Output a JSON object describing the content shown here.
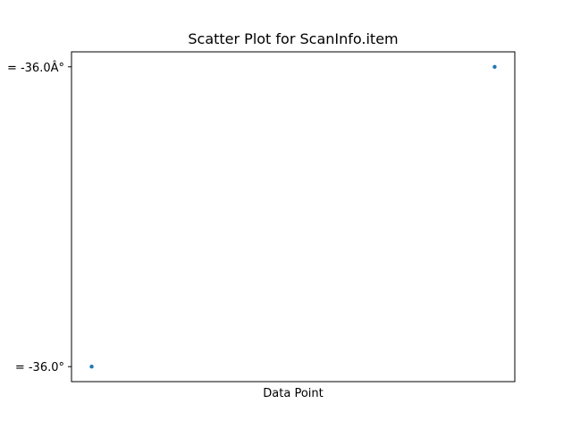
{
  "chart_data": {
    "type": "scatter",
    "title": "Scatter Plot for ScanInfo.item",
    "xlabel": "Data Point",
    "ylabel": "",
    "categories": [
      "= -36.0°",
      "= -36.0Â°"
    ],
    "x": [
      0,
      1
    ],
    "y": [
      "= -36.0°",
      "= -36.0Â°"
    ],
    "xlim": [
      -0.05,
      1.05
    ],
    "ylim": [
      -0.05,
      1.05
    ],
    "x_ticks_visible": false,
    "grid": false,
    "legend": "none",
    "colors": {
      "marker": "#1f77b4",
      "axes": "#000000",
      "background": "#ffffff"
    }
  }
}
